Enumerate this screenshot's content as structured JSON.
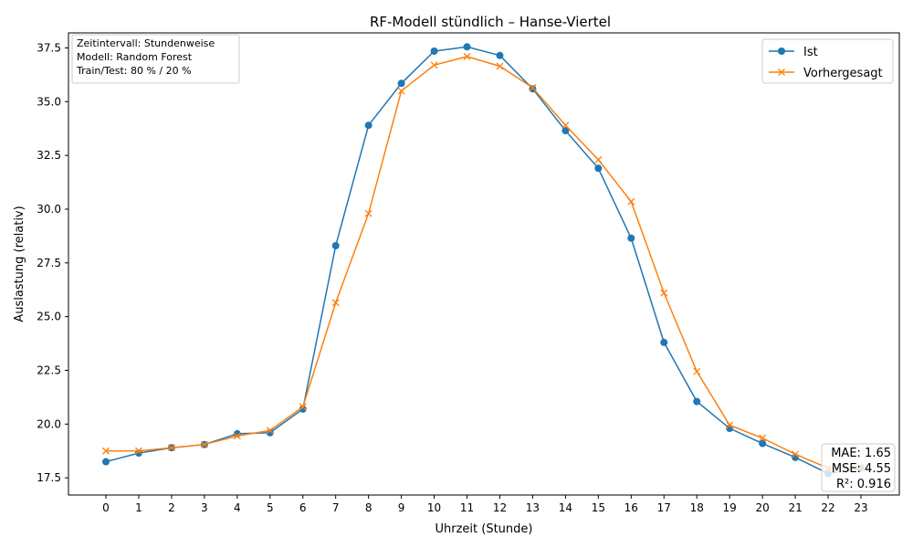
{
  "chart_data": {
    "type": "line",
    "title": "RF-Modell stündlich – Hanse-Viertel",
    "xlabel": "Uhrzeit (Stunde)",
    "ylabel": "Auslastung (relativ)",
    "x": [
      0,
      1,
      2,
      3,
      4,
      5,
      6,
      7,
      8,
      9,
      10,
      11,
      12,
      13,
      14,
      15,
      16,
      17,
      18,
      19,
      20,
      21,
      22,
      23
    ],
    "xticks": [
      "0",
      "1",
      "2",
      "3",
      "4",
      "5",
      "6",
      "7",
      "8",
      "9",
      "10",
      "11",
      "12",
      "13",
      "14",
      "15",
      "16",
      "17",
      "18",
      "19",
      "20",
      "21",
      "22",
      "23"
    ],
    "ylim": [
      16.7,
      38.2
    ],
    "yticks": [
      17.5,
      20.0,
      22.5,
      25.0,
      27.5,
      30.0,
      32.5,
      35.0,
      37.5
    ],
    "ytick_labels": [
      "17.5",
      "20.0",
      "22.5",
      "25.0",
      "27.5",
      "30.0",
      "32.5",
      "35.0",
      "37.5"
    ],
    "grid": false,
    "legend_position": "top-right",
    "series": [
      {
        "name": "Ist",
        "color": "#1f77b4",
        "marker": "circle",
        "values": [
          18.25,
          18.65,
          18.9,
          19.05,
          19.55,
          19.6,
          20.7,
          28.3,
          33.9,
          35.85,
          37.35,
          37.55,
          37.15,
          35.6,
          33.65,
          31.9,
          28.65,
          23.8,
          21.05,
          19.8,
          19.1,
          18.45,
          17.7,
          17.95
        ]
      },
      {
        "name": "Vorhergesagt",
        "color": "#ff7f0e",
        "marker": "x",
        "values": [
          18.75,
          18.75,
          18.9,
          19.05,
          19.45,
          19.7,
          20.8,
          25.65,
          29.8,
          35.5,
          36.7,
          37.1,
          36.65,
          35.65,
          33.9,
          32.3,
          30.35,
          26.1,
          22.45,
          19.95,
          19.35,
          18.6,
          17.95,
          18.0
        ]
      }
    ],
    "info_box": [
      "Zeitintervall: Stundenweise",
      "Modell: Random Forest",
      "Train/Test: 80 % / 20 %"
    ],
    "metrics_box": [
      "MAE: 1.65",
      "MSE: 4.55",
      "R²: 0.916"
    ]
  }
}
